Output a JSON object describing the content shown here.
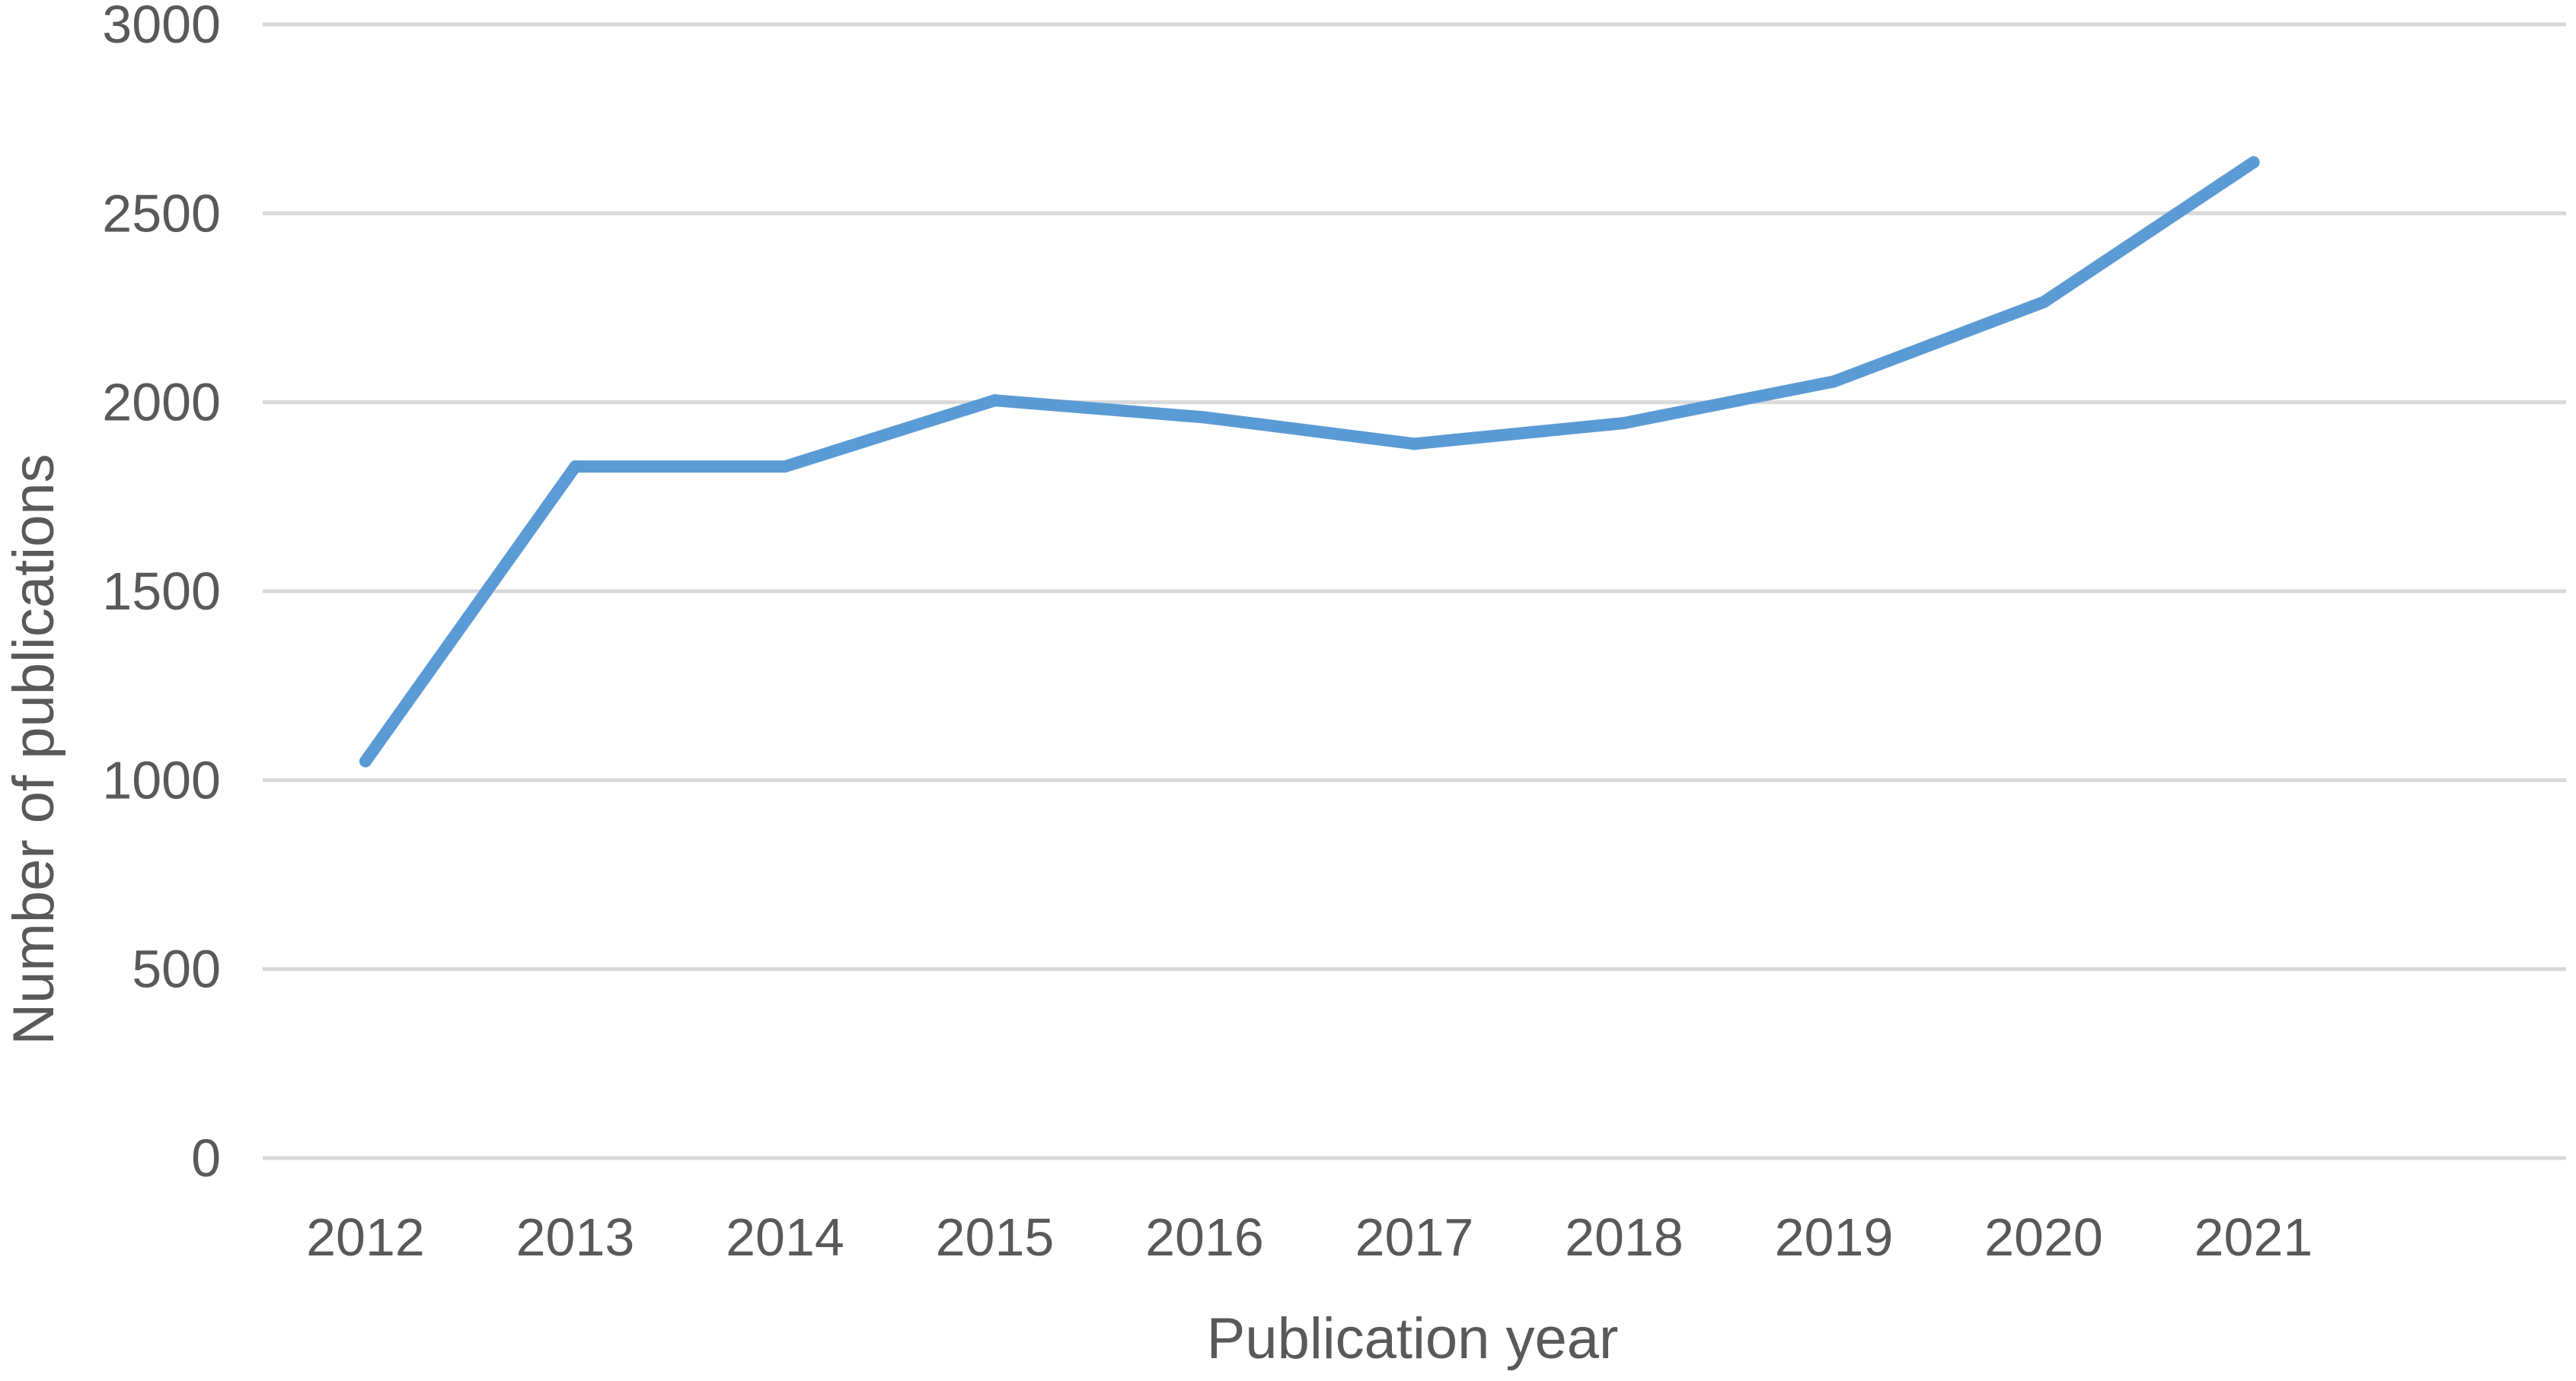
{
  "chart_data": {
    "type": "line",
    "title": "",
    "xlabel": "Publication year",
    "ylabel": "Number of publications",
    "categories": [
      "2012",
      "2013",
      "2014",
      "2015",
      "2016",
      "2017",
      "2018",
      "2019",
      "2020",
      "2021"
    ],
    "series": [
      {
        "values": [
          1050,
          1830,
          1830,
          2005,
          1960,
          1890,
          1945,
          2055,
          2265,
          2635
        ],
        "color": "#5b9bd5"
      }
    ],
    "ylim": [
      0,
      3000
    ],
    "yticks": [
      "0",
      "500",
      "1000",
      "1500",
      "2000",
      "2500",
      "3000"
    ],
    "grid": true,
    "legend": "none"
  }
}
